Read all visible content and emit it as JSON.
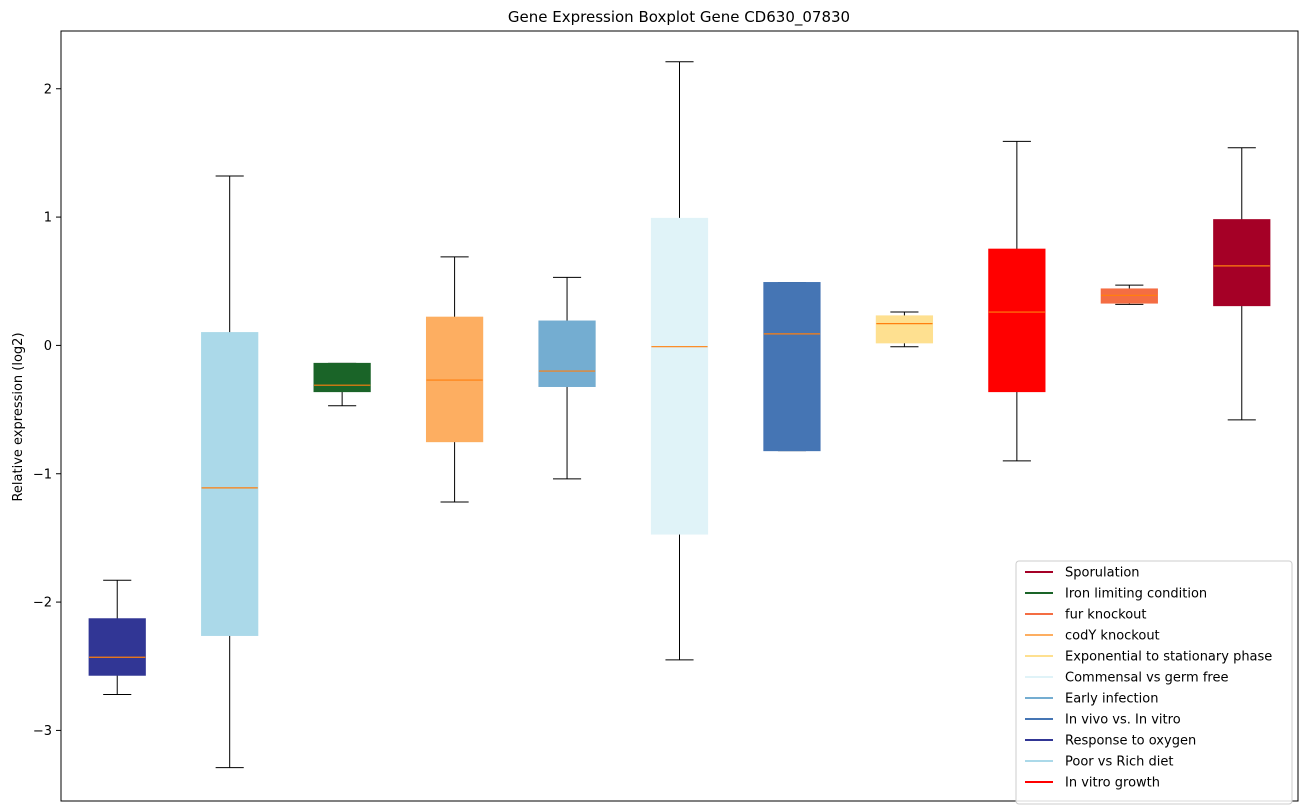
{
  "chart_data": {
    "type": "box",
    "title": "Gene Expression Boxplot Gene CD630_07830",
    "xlabel": "",
    "ylabel": "Relative expression (log2)",
    "ylim": [
      -3.55,
      2.45
    ],
    "yticks": [
      -3,
      -2,
      -1,
      0,
      1,
      2
    ],
    "grid": false,
    "legend_position": "bottom-right",
    "boxes": [
      {
        "color": "#313695",
        "whisker_low": -2.72,
        "q1": -2.57,
        "median": -2.43,
        "q3": -2.13,
        "whisker_high": -1.83
      },
      {
        "color": "#abd9e9",
        "whisker_low": -3.29,
        "q1": -2.26,
        "median": -1.11,
        "q3": 0.1,
        "whisker_high": 1.32
      },
      {
        "color": "#1a6428",
        "whisker_low": -0.47,
        "q1": -0.36,
        "median": -0.31,
        "q3": -0.14,
        "whisker_high": -0.14
      },
      {
        "color": "#fdae61",
        "whisker_low": -1.22,
        "q1": -0.75,
        "median": -0.27,
        "q3": 0.22,
        "whisker_high": 0.69
      },
      {
        "color": "#74add1",
        "whisker_low": -1.04,
        "q1": -0.32,
        "median": -0.2,
        "q3": 0.19,
        "whisker_high": 0.53
      },
      {
        "color": "#e0f3f8",
        "whisker_low": -2.45,
        "q1": -1.47,
        "median": -0.01,
        "q3": 0.99,
        "whisker_high": 2.21
      },
      {
        "color": "#4575b4",
        "whisker_low": -0.82,
        "q1": -0.82,
        "median": 0.09,
        "q3": 0.49,
        "whisker_high": 0.49
      },
      {
        "color": "#fee090",
        "whisker_low": -0.01,
        "q1": 0.02,
        "median": 0.17,
        "q3": 0.23,
        "whisker_high": 0.26
      },
      {
        "color": "#ff0000",
        "whisker_low": -0.9,
        "q1": -0.36,
        "median": 0.26,
        "q3": 0.75,
        "whisker_high": 1.59
      },
      {
        "color": "#f46d43",
        "whisker_low": 0.32,
        "q1": 0.33,
        "median": 0.39,
        "q3": 0.44,
        "whisker_high": 0.47
      },
      {
        "color": "#a50026",
        "whisker_low": -0.58,
        "q1": 0.31,
        "median": 0.62,
        "q3": 0.98,
        "whisker_high": 1.54
      }
    ],
    "median_color": "#ff7f0e",
    "legend": [
      {
        "label": "Sporulation",
        "color": "#a50026"
      },
      {
        "label": "Iron limiting condition",
        "color": "#1a6428"
      },
      {
        "label": "fur knockout",
        "color": "#f46d43"
      },
      {
        "label": "codY knockout",
        "color": "#fdae61"
      },
      {
        "label": "Exponential to stationary phase",
        "color": "#fee090"
      },
      {
        "label": "Commensal vs germ free",
        "color": "#e0f3f8"
      },
      {
        "label": "Early infection",
        "color": "#74add1"
      },
      {
        "label": "In vivo vs. In vitro",
        "color": "#4575b4"
      },
      {
        "label": "Response to oxygen",
        "color": "#313695"
      },
      {
        "label": "Poor vs Rich diet",
        "color": "#abd9e9"
      },
      {
        "label": "In vitro growth",
        "color": "#ff0000"
      }
    ]
  }
}
